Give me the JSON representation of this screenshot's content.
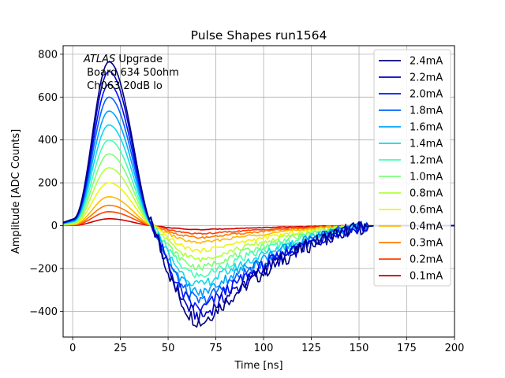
{
  "chart_data": {
    "type": "line",
    "title": "Pulse Shapes run1564",
    "xlabel": "Time [ns]",
    "ylabel": "Amplitude [ADC Counts]",
    "xlim": [
      -5,
      200
    ],
    "ylim": [
      -520,
      840
    ],
    "xticks": [
      0,
      25,
      50,
      75,
      100,
      125,
      150,
      175,
      200
    ],
    "yticks": [
      -400,
      -200,
      0,
      200,
      400,
      600,
      800
    ],
    "grid": true,
    "legend_position": "upper right",
    "annotation": {
      "line1_italic": "ATLAS",
      "line1_rest": " Upgrade",
      "line2": " Board 634 50ohm",
      "line3": " Ch063 20dB lo"
    },
    "pulse_model": {
      "x_start": -5,
      "x_end": 200,
      "x_step": 1,
      "pos_peak_time": 19,
      "zero_cross_time": 42,
      "neg_peak_time": 68,
      "neg_peak_ratio": -0.59,
      "tail_end_time": 160,
      "noise_start": 40,
      "noise_end": 155,
      "noise_frac": 0.045
    },
    "series": [
      {
        "name": "2.4mA",
        "color": "#00007f",
        "peak": 765
      },
      {
        "name": "2.2mA",
        "color": "#0000c8",
        "peak": 720
      },
      {
        "name": "2.0mA",
        "color": "#0010ff",
        "peak": 660
      },
      {
        "name": "1.8mA",
        "color": "#0064ff",
        "peak": 600
      },
      {
        "name": "1.6mA",
        "color": "#00a4ff",
        "peak": 535
      },
      {
        "name": "1.4mA",
        "color": "#10d8ed",
        "peak": 470
      },
      {
        "name": "1.2mA",
        "color": "#43ffb3",
        "peak": 400
      },
      {
        "name": "1.0mA",
        "color": "#7cff79",
        "peak": 335
      },
      {
        "name": "0.8mA",
        "color": "#b3ff43",
        "peak": 270
      },
      {
        "name": "0.6mA",
        "color": "#f0f50f",
        "peak": 200
      },
      {
        "name": "0.4mA",
        "color": "#ffb900",
        "peak": 135
      },
      {
        "name": "0.3mA",
        "color": "#ff7b00",
        "peak": 95
      },
      {
        "name": "0.2mA",
        "color": "#ff3f00",
        "peak": 65
      },
      {
        "name": "0.1mA",
        "color": "#c80000",
        "peak": 32
      }
    ]
  }
}
